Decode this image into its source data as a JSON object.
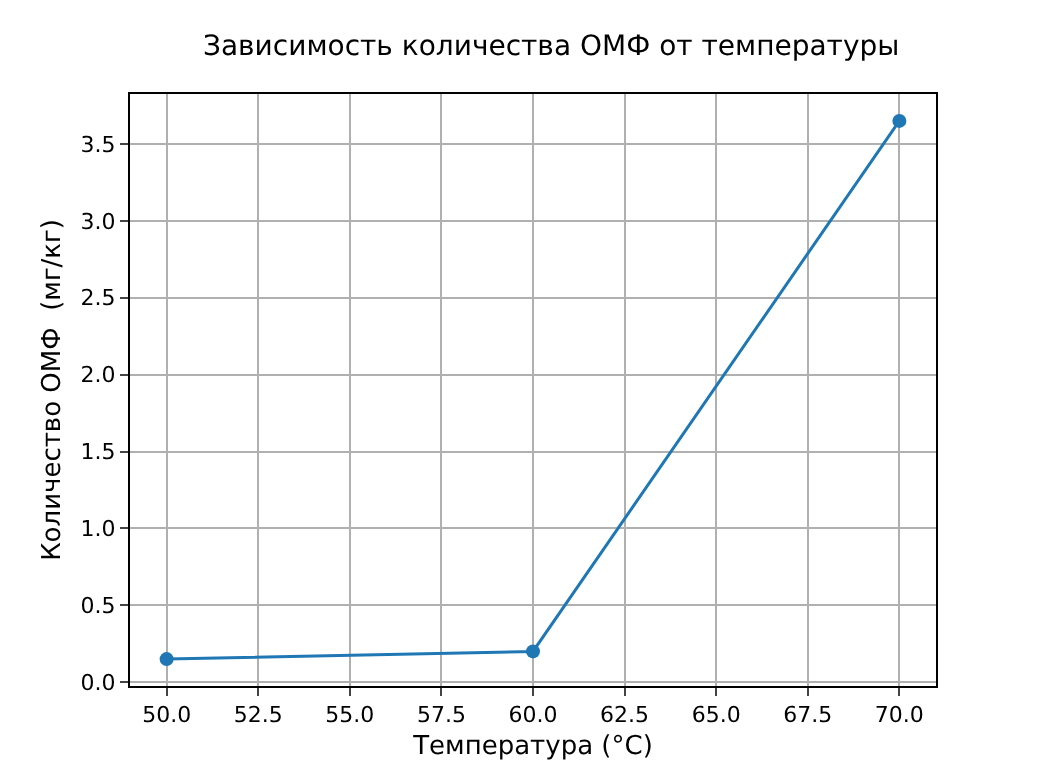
{
  "chart_data": {
    "type": "line",
    "title": "Зависимость количества ОМФ от температуры",
    "xlabel": "Температура (°C)",
    "ylabel": "Количество ОМФ  (мг/кг)",
    "x": [
      50,
      60,
      70
    ],
    "series": [
      {
        "color": "#1f77b4",
        "values": [
          0.15,
          0.2,
          3.65
        ]
      }
    ],
    "xlim": [
      49,
      71
    ],
    "xticks": [
      {
        "value": 50,
        "label": "50.0"
      },
      {
        "value": 52.5,
        "label": "52.5"
      },
      {
        "value": 55,
        "label": "55.0"
      },
      {
        "value": 57.5,
        "label": "57.5"
      },
      {
        "value": 60,
        "label": "60.0"
      },
      {
        "value": 62.5,
        "label": "62.5"
      },
      {
        "value": 65,
        "label": "65.0"
      },
      {
        "value": 67.5,
        "label": "67.5"
      },
      {
        "value": 70,
        "label": "70.0"
      }
    ],
    "ylim": [
      -0.025,
      3.825
    ],
    "yticks": [
      {
        "value": 0,
        "label": "0.0"
      },
      {
        "value": 0.5,
        "label": "0.5"
      },
      {
        "value": 1,
        "label": "1.0"
      },
      {
        "value": 1.5,
        "label": "1.5"
      },
      {
        "value": 2,
        "label": "2.0"
      },
      {
        "value": 2.5,
        "label": "2.5"
      },
      {
        "value": 3,
        "label": "3.0"
      },
      {
        "value": 3.5,
        "label": "3.5"
      }
    ],
    "grid": true,
    "marker": "circle",
    "line_style": "solid"
  }
}
